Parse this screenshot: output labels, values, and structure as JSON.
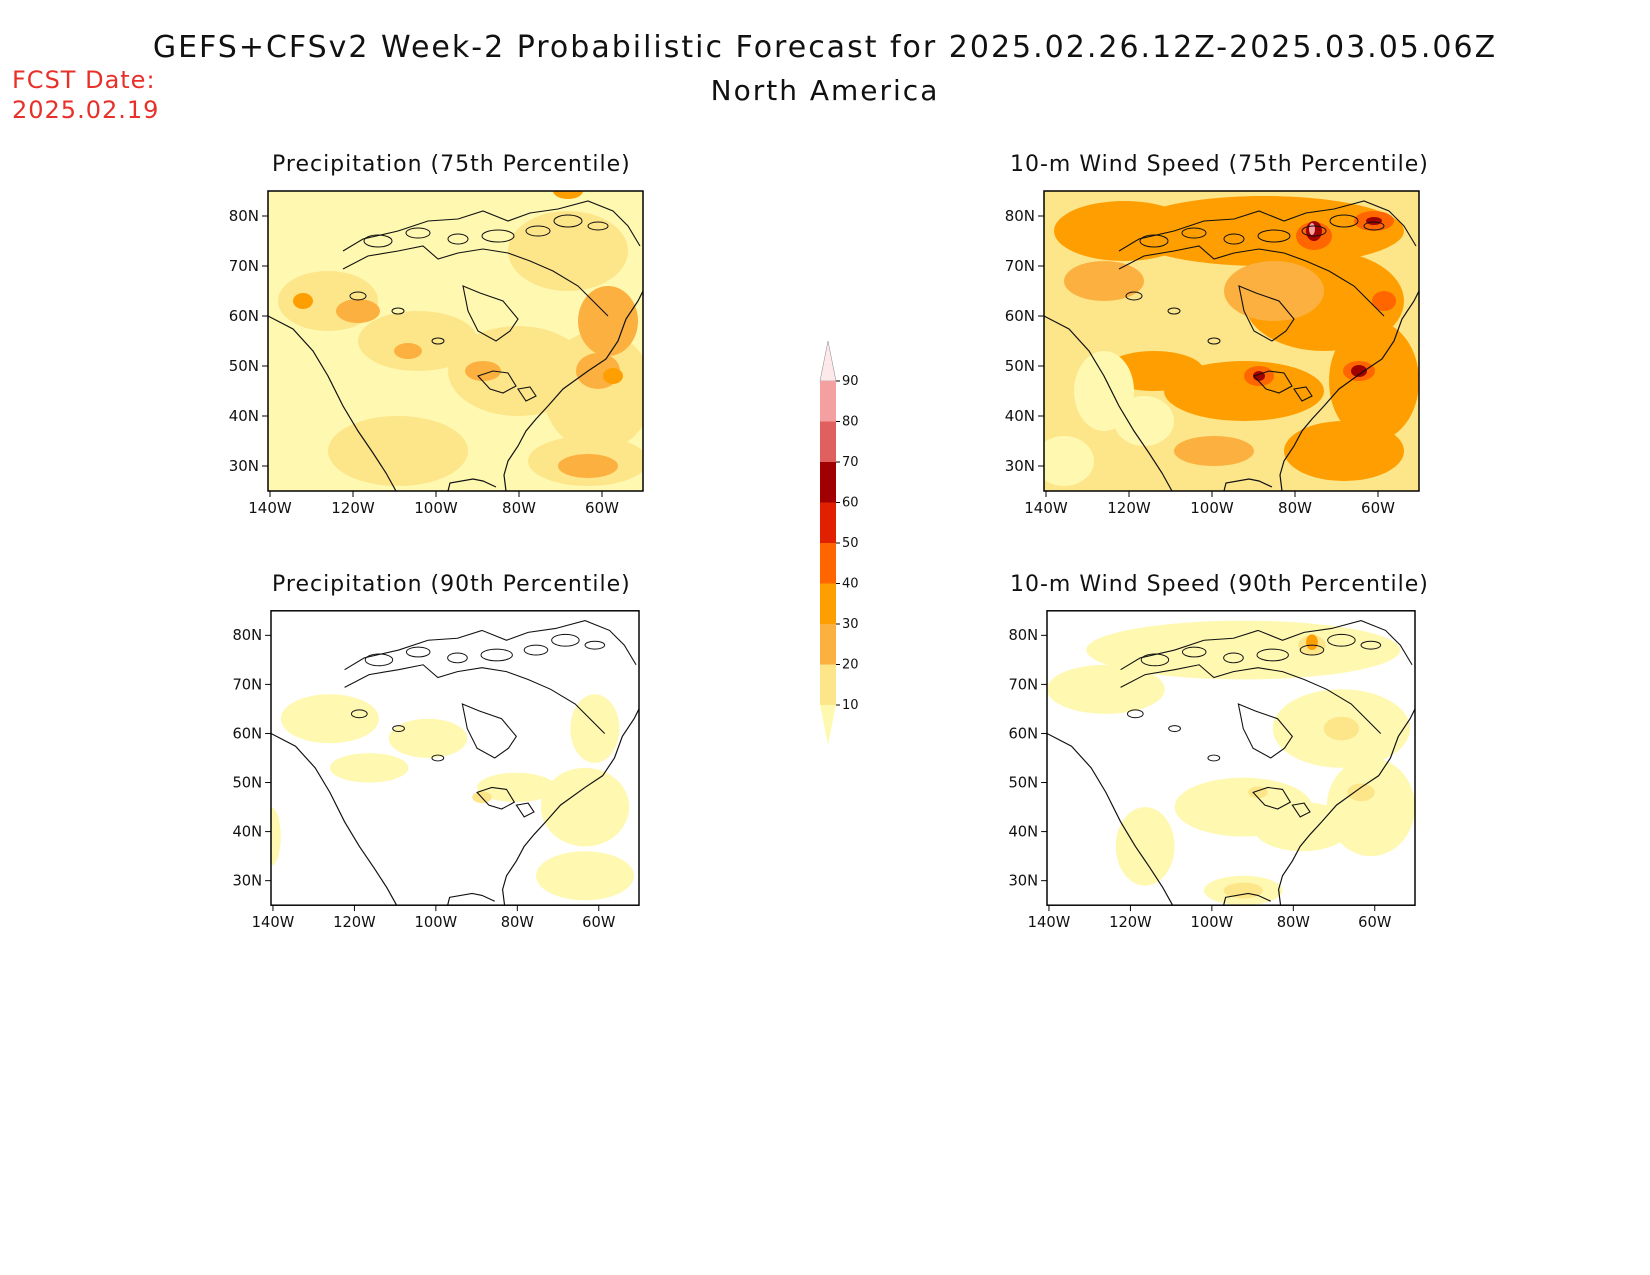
{
  "title": "GEFS+CFSv2 Week-2 Probabilistic Forecast for 2025.02.26.12Z-2025.03.05.06Z",
  "subtitle": "North America",
  "fcst_label": "FCST Date:",
  "fcst_date": "2025.02.19",
  "axes": {
    "lat_ticks": [
      "80N",
      "70N",
      "60N",
      "50N",
      "40N",
      "30N"
    ],
    "lon_ticks": [
      "140W",
      "120W",
      "100W",
      "80W",
      "60W"
    ]
  },
  "panels": [
    {
      "id": "precip75",
      "title": "Precipitation (75th Percentile)",
      "intensity": "medium"
    },
    {
      "id": "wind75",
      "title": "10-m Wind Speed (75th Percentile)",
      "intensity": "high"
    },
    {
      "id": "precip90",
      "title": "Precipitation (90th Percentile)",
      "intensity": "low"
    },
    {
      "id": "wind90",
      "title": "10-m Wind Speed (90th Percentile)",
      "intensity": "low-medium"
    }
  ],
  "legend": {
    "levels": [
      "10",
      "20",
      "30",
      "40",
      "50",
      "60",
      "70",
      "80",
      "90"
    ],
    "colors": [
      "#fff8b0",
      "#fde58a",
      "#fbb040",
      "#ff9e00",
      "#ff6600",
      "#e02000",
      "#a00000",
      "#e06060",
      "#f4a0a0",
      "#fde8ea"
    ]
  }
}
